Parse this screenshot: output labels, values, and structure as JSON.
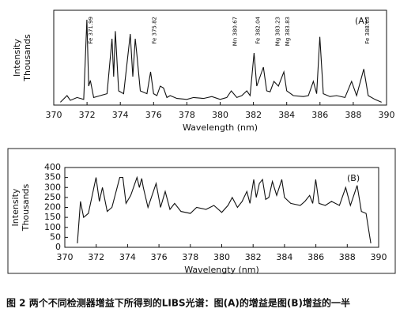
{
  "chart_data": [
    {
      "type": "line",
      "xlabel": "Wavelength (nm)",
      "ylabel": "Intensity",
      "ylabel2": "Thousands",
      "panel_label": "(A)",
      "xlim": [
        370,
        390
      ],
      "xticks": [
        370,
        372,
        374,
        376,
        378,
        380,
        382,
        384,
        386,
        388,
        390
      ],
      "ylim": [
        0,
        100
      ],
      "color": "#111111",
      "annotations": [
        {
          "text": "Fe 371.99",
          "x": 371.99
        },
        {
          "text": "Fe 375.82",
          "x": 375.82
        },
        {
          "text": "Mn 380.67",
          "x": 380.67
        },
        {
          "text": "Fe 382.04",
          "x": 382.04
        },
        {
          "text": "Mg 383.23",
          "x": 383.23
        },
        {
          "text": "Mg 383.83",
          "x": 383.83
        },
        {
          "text": "Fe 388.63",
          "x": 388.63
        }
      ],
      "x": [
        370.4,
        370.8,
        371.0,
        371.4,
        371.8,
        371.99,
        372.1,
        372.2,
        372.4,
        372.8,
        373.2,
        373.5,
        373.6,
        373.7,
        373.9,
        374.2,
        374.6,
        374.75,
        374.9,
        375.0,
        375.2,
        375.6,
        375.82,
        376.0,
        376.2,
        376.4,
        376.6,
        376.8,
        377.0,
        377.4,
        378.0,
        378.4,
        379.0,
        379.5,
        380.0,
        380.4,
        380.67,
        381.0,
        381.3,
        381.6,
        381.8,
        382.04,
        382.2,
        382.4,
        382.6,
        382.8,
        383.0,
        383.23,
        383.5,
        383.83,
        384.0,
        384.4,
        385.0,
        385.3,
        385.6,
        385.8,
        385.99,
        386.2,
        386.6,
        387.0,
        387.5,
        387.9,
        388.2,
        388.63,
        388.9,
        389.3,
        389.7
      ],
      "values": [
        3,
        10,
        5,
        8,
        6,
        90,
        20,
        26,
        8,
        10,
        12,
        70,
        30,
        78,
        15,
        12,
        75,
        30,
        70,
        52,
        15,
        12,
        35,
        12,
        10,
        20,
        18,
        8,
        10,
        7,
        6,
        8,
        7,
        9,
        6,
        8,
        15,
        8,
        10,
        15,
        10,
        55,
        20,
        30,
        40,
        15,
        14,
        25,
        20,
        35,
        15,
        10,
        9,
        10,
        25,
        12,
        72,
        12,
        9,
        10,
        8,
        25,
        10,
        38,
        10,
        6,
        3
      ]
    },
    {
      "type": "line",
      "xlabel": "Wavelengty (nm)",
      "ylabel": "Intensity",
      "ylabel2": "Thousands",
      "panel_label": "(B)",
      "xlim": [
        370,
        390
      ],
      "xticks": [
        370,
        372,
        374,
        376,
        378,
        380,
        382,
        384,
        386,
        388,
        390
      ],
      "ylim": [
        0,
        400
      ],
      "yticks": [
        0,
        50,
        100,
        150,
        200,
        250,
        300,
        350,
        400
      ],
      "color": "#111111",
      "annotations": [],
      "x": [
        370.8,
        371.0,
        371.2,
        371.5,
        371.99,
        372.2,
        372.4,
        372.7,
        373.0,
        373.5,
        373.7,
        373.9,
        374.2,
        374.6,
        374.75,
        374.9,
        375.0,
        375.3,
        375.82,
        376.1,
        376.4,
        376.7,
        377.0,
        377.4,
        378.0,
        378.4,
        379.0,
        379.5,
        380.0,
        380.4,
        380.67,
        381.0,
        381.3,
        381.6,
        381.8,
        382.04,
        382.2,
        382.4,
        382.6,
        382.8,
        383.0,
        383.23,
        383.5,
        383.83,
        384.0,
        384.4,
        385.0,
        385.3,
        385.6,
        385.8,
        385.99,
        386.2,
        386.6,
        387.0,
        387.5,
        387.9,
        388.2,
        388.63,
        388.9,
        389.2,
        389.5
      ],
      "values": [
        20,
        230,
        150,
        170,
        350,
        230,
        300,
        180,
        200,
        350,
        350,
        220,
        260,
        350,
        300,
        345,
        300,
        200,
        320,
        200,
        280,
        190,
        220,
        180,
        170,
        200,
        190,
        210,
        175,
        210,
        250,
        200,
        230,
        280,
        220,
        340,
        250,
        320,
        340,
        240,
        250,
        330,
        260,
        340,
        250,
        220,
        210,
        230,
        260,
        220,
        340,
        220,
        210,
        230,
        210,
        300,
        210,
        310,
        180,
        170,
        20
      ]
    }
  ],
  "caption": "图 2  两个不同检测器增益下所得到的LIBS光谱：图(A)的增益是图(B)增益的一半"
}
